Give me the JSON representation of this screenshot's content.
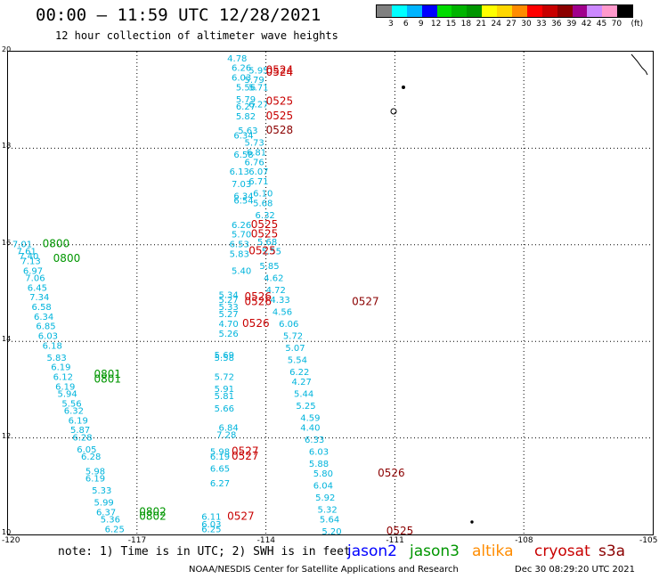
{
  "header": {
    "title": "00:00 – 11:59 UTC 12/28/2021",
    "subtitle": "12 hour collection of altimeter wave heights"
  },
  "legend": {
    "colors": [
      "#808080",
      "#00ffff",
      "#00b4ff",
      "#0000ff",
      "#00dc00",
      "#00b400",
      "#009600",
      "#ffff00",
      "#ffd700",
      "#ff8c00",
      "#ff0000",
      "#c80000",
      "#8b0000",
      "#a0008c",
      "#cc88ff",
      "#ff99cc",
      "#000000"
    ],
    "labels": [
      "3",
      "6",
      "9",
      "12",
      "15",
      "18",
      "21",
      "24",
      "27",
      "30",
      "33",
      "36",
      "39",
      "42",
      "45",
      "70",
      "(ft)"
    ]
  },
  "axes": {
    "x_ticks": [
      "-120",
      "-117",
      "-114",
      "-111",
      "-108",
      "-105"
    ],
    "y_ticks": [
      "20",
      "18",
      "16",
      "14",
      "12",
      "10"
    ]
  },
  "colors": {
    "jason2": "#0000ff",
    "jason3": "#009600",
    "altika": "#ff8c00",
    "cryosat": "#c80000",
    "s3a": "#8b0000",
    "swh": "#00b4dc"
  },
  "footer": {
    "note": "note: 1) Time is in UTC; 2) SWH is in feet",
    "satellites": [
      "jason2",
      "jason3",
      "altika",
      "cryosat",
      "s3a"
    ],
    "credit": "NOAA/NESDIS Center for Satellite Applications and Research",
    "timestamp": "Dec 30 08:29:20 UTC 2021"
  },
  "map_annotations": {
    "swh_values": [
      {
        "lon": -114.9,
        "lat": 19.8,
        "v": "4.78"
      },
      {
        "lon": -114.8,
        "lat": 19.6,
        "v": "6.26"
      },
      {
        "lon": -114.4,
        "lat": 19.55,
        "v": "5.95"
      },
      {
        "lon": -114.8,
        "lat": 19.4,
        "v": "6.03"
      },
      {
        "lon": -114.5,
        "lat": 19.35,
        "v": "5.79"
      },
      {
        "lon": -114.7,
        "lat": 19.2,
        "v": "5.56"
      },
      {
        "lon": -114.4,
        "lat": 19.2,
        "v": "5.71"
      },
      {
        "lon": -114.7,
        "lat": 18.95,
        "v": "5.79"
      },
      {
        "lon": -114.4,
        "lat": 18.85,
        "v": "6.27"
      },
      {
        "lon": -114.7,
        "lat": 18.8,
        "v": "6.27"
      },
      {
        "lon": -114.7,
        "lat": 18.6,
        "v": "5.82"
      },
      {
        "lon": -114.65,
        "lat": 18.3,
        "v": "5.63"
      },
      {
        "lon": -114.75,
        "lat": 18.2,
        "v": "6.34"
      },
      {
        "lon": -114.5,
        "lat": 18.05,
        "v": "5.73"
      },
      {
        "lon": -114.45,
        "lat": 17.85,
        "v": "6.81"
      },
      {
        "lon": -114.75,
        "lat": 17.8,
        "v": "6.58"
      },
      {
        "lon": -114.5,
        "lat": 17.65,
        "v": "6.76"
      },
      {
        "lon": -114.85,
        "lat": 17.45,
        "v": "6.13"
      },
      {
        "lon": -114.4,
        "lat": 17.45,
        "v": "6.07"
      },
      {
        "lon": -114.8,
        "lat": 17.2,
        "v": "7.03"
      },
      {
        "lon": -114.4,
        "lat": 17.25,
        "v": "6.71"
      },
      {
        "lon": -114.75,
        "lat": 16.95,
        "v": "6.34"
      },
      {
        "lon": -114.3,
        "lat": 17.0,
        "v": "6.10"
      },
      {
        "lon": -114.75,
        "lat": 16.85,
        "v": "6.54"
      },
      {
        "lon": -114.3,
        "lat": 16.8,
        "v": "5.68"
      },
      {
        "lon": -114.25,
        "lat": 16.55,
        "v": "6.32"
      },
      {
        "lon": -114.8,
        "lat": 16.35,
        "v": "6.26"
      },
      {
        "lon": -114.8,
        "lat": 16.15,
        "v": "5.70"
      },
      {
        "lon": -114.2,
        "lat": 16.0,
        "v": "5.68"
      },
      {
        "lon": -114.85,
        "lat": 15.95,
        "v": "6.53"
      },
      {
        "lon": -114.1,
        "lat": 15.8,
        "v": "5.55"
      },
      {
        "lon": -114.85,
        "lat": 15.75,
        "v": "5.83"
      },
      {
        "lon": -114.15,
        "lat": 15.5,
        "v": "5.85"
      },
      {
        "lon": -114.8,
        "lat": 15.4,
        "v": "5.40"
      },
      {
        "lon": -114.05,
        "lat": 15.25,
        "v": "4.62"
      },
      {
        "lon": -114.0,
        "lat": 15.0,
        "v": "4.72"
      },
      {
        "lon": -115.1,
        "lat": 14.9,
        "v": "5.34"
      },
      {
        "lon": -115.1,
        "lat": 14.8,
        "v": "5.27"
      },
      {
        "lon": -113.9,
        "lat": 14.8,
        "v": "4.33"
      },
      {
        "lon": -115.1,
        "lat": 14.65,
        "v": "5.33"
      },
      {
        "lon": -113.85,
        "lat": 14.55,
        "v": "4.56"
      },
      {
        "lon": -115.1,
        "lat": 14.5,
        "v": "5.27"
      },
      {
        "lon": -115.1,
        "lat": 14.3,
        "v": "4.70"
      },
      {
        "lon": -113.7,
        "lat": 14.3,
        "v": "6.06"
      },
      {
        "lon": -115.1,
        "lat": 14.1,
        "v": "5.26"
      },
      {
        "lon": -113.6,
        "lat": 14.05,
        "v": "5.72"
      },
      {
        "lon": -113.55,
        "lat": 13.8,
        "v": "5.07"
      },
      {
        "lon": -115.2,
        "lat": 13.65,
        "v": "5.69"
      },
      {
        "lon": -115.2,
        "lat": 13.6,
        "v": "5.58"
      },
      {
        "lon": -113.5,
        "lat": 13.55,
        "v": "5.54"
      },
      {
        "lon": -113.45,
        "lat": 13.3,
        "v": "6.22"
      },
      {
        "lon": -115.2,
        "lat": 13.2,
        "v": "5.72"
      },
      {
        "lon": -113.4,
        "lat": 13.1,
        "v": "4.27"
      },
      {
        "lon": -115.2,
        "lat": 12.95,
        "v": "5.91"
      },
      {
        "lon": -113.35,
        "lat": 12.85,
        "v": "5.44"
      },
      {
        "lon": -115.2,
        "lat": 12.8,
        "v": "5.81"
      },
      {
        "lon": -113.3,
        "lat": 12.6,
        "v": "5.25"
      },
      {
        "lon": -115.2,
        "lat": 12.55,
        "v": "5.66"
      },
      {
        "lon": -113.2,
        "lat": 12.35,
        "v": "4.59"
      },
      {
        "lon": -115.1,
        "lat": 12.15,
        "v": "6.84"
      },
      {
        "lon": -113.2,
        "lat": 12.15,
        "v": "4.40"
      },
      {
        "lon": -115.15,
        "lat": 12.0,
        "v": "7.28"
      },
      {
        "lon": -113.1,
        "lat": 11.9,
        "v": "6.33"
      },
      {
        "lon": -115.3,
        "lat": 11.65,
        "v": "5.98"
      },
      {
        "lon": -113.0,
        "lat": 11.65,
        "v": "6.03"
      },
      {
        "lon": -115.3,
        "lat": 11.55,
        "v": "6.19"
      },
      {
        "lon": -113.0,
        "lat": 11.4,
        "v": "5.88"
      },
      {
        "lon": -115.3,
        "lat": 11.3,
        "v": "6.65"
      },
      {
        "lon": -112.9,
        "lat": 11.2,
        "v": "5.80"
      },
      {
        "lon": -115.3,
        "lat": 11.0,
        "v": "6.27"
      },
      {
        "lon": -112.9,
        "lat": 10.95,
        "v": "6.04"
      },
      {
        "lon": -112.85,
        "lat": 10.7,
        "v": "5.92"
      },
      {
        "lon": -112.8,
        "lat": 10.45,
        "v": "5.32"
      },
      {
        "lon": -115.5,
        "lat": 10.3,
        "v": "6.11"
      },
      {
        "lon": -112.75,
        "lat": 10.25,
        "v": "5.64"
      },
      {
        "lon": -115.5,
        "lat": 10.15,
        "v": "6.03"
      },
      {
        "lon": -115.5,
        "lat": 10.05,
        "v": "6.25"
      },
      {
        "lon": -112.7,
        "lat": 10.0,
        "v": "5.20"
      },
      {
        "lon": -119.9,
        "lat": 15.95,
        "v": "7.01"
      },
      {
        "lon": -119.8,
        "lat": 15.8,
        "v": "7.61"
      },
      {
        "lon": -119.75,
        "lat": 15.7,
        "v": "7.40"
      },
      {
        "lon": -119.7,
        "lat": 15.6,
        "v": "7.13"
      },
      {
        "lon": -119.65,
        "lat": 15.4,
        "v": "6.97"
      },
      {
        "lon": -119.6,
        "lat": 15.25,
        "v": "7.06"
      },
      {
        "lon": -119.55,
        "lat": 15.05,
        "v": "6.45"
      },
      {
        "lon": -119.5,
        "lat": 14.85,
        "v": "7.34"
      },
      {
        "lon": -119.45,
        "lat": 14.65,
        "v": "6.58"
      },
      {
        "lon": -119.4,
        "lat": 14.45,
        "v": "6.34"
      },
      {
        "lon": -119.35,
        "lat": 14.25,
        "v": "6.85"
      },
      {
        "lon": -119.3,
        "lat": 14.05,
        "v": "6.03"
      },
      {
        "lon": -119.2,
        "lat": 13.85,
        "v": "6.18"
      },
      {
        "lon": -119.1,
        "lat": 13.6,
        "v": "5.83"
      },
      {
        "lon": -119.0,
        "lat": 13.4,
        "v": "6.19"
      },
      {
        "lon": -118.95,
        "lat": 13.2,
        "v": "6.12"
      },
      {
        "lon": -118.9,
        "lat": 13.0,
        "v": "6.19"
      },
      {
        "lon": -118.85,
        "lat": 12.85,
        "v": "5.94"
      },
      {
        "lon": -118.75,
        "lat": 12.65,
        "v": "5.56"
      },
      {
        "lon": -118.7,
        "lat": 12.5,
        "v": "6.32"
      },
      {
        "lon": -118.6,
        "lat": 12.3,
        "v": "6.19"
      },
      {
        "lon": -118.55,
        "lat": 12.1,
        "v": "5.87"
      },
      {
        "lon": -118.5,
        "lat": 11.95,
        "v": "6.28"
      },
      {
        "lon": -118.4,
        "lat": 11.7,
        "v": "6.05"
      },
      {
        "lon": -118.3,
        "lat": 11.55,
        "v": "6.28"
      },
      {
        "lon": -118.2,
        "lat": 11.25,
        "v": "5.98"
      },
      {
        "lon": -118.2,
        "lat": 11.1,
        "v": "6.19"
      },
      {
        "lon": -118.05,
        "lat": 10.85,
        "v": "5.33"
      },
      {
        "lon": -118.0,
        "lat": 10.6,
        "v": "5.99"
      },
      {
        "lon": -117.95,
        "lat": 10.4,
        "v": "6.37"
      },
      {
        "lon": -117.85,
        "lat": 10.25,
        "v": "5.36"
      },
      {
        "lon": -117.75,
        "lat": 10.05,
        "v": "6.25"
      }
    ],
    "passes": [
      {
        "lon": -114.0,
        "lat": 19.55,
        "t": "0524",
        "sat": "cryosat"
      },
      {
        "lon": -114.0,
        "lat": 19.5,
        "t": "0524",
        "sat": "cryosat"
      },
      {
        "lon": -114.0,
        "lat": 18.9,
        "t": "0525",
        "sat": "cryosat"
      },
      {
        "lon": -114.0,
        "lat": 18.6,
        "t": "0525",
        "sat": "cryosat"
      },
      {
        "lon": -114.0,
        "lat": 18.3,
        "t": "0528",
        "sat": "s3a"
      },
      {
        "lon": -114.35,
        "lat": 16.35,
        "t": "0525",
        "sat": "cryosat"
      },
      {
        "lon": -114.35,
        "lat": 16.15,
        "t": "0525",
        "sat": "cryosat"
      },
      {
        "lon": -114.4,
        "lat": 15.8,
        "t": "0525",
        "sat": "cryosat"
      },
      {
        "lon": -114.5,
        "lat": 14.85,
        "t": "0526",
        "sat": "cryosat"
      },
      {
        "lon": -114.5,
        "lat": 14.75,
        "t": "0526",
        "sat": "cryosat"
      },
      {
        "lon": -112.0,
        "lat": 14.75,
        "t": "0527",
        "sat": "s3a"
      },
      {
        "lon": -114.55,
        "lat": 14.3,
        "t": "0526",
        "sat": "cryosat"
      },
      {
        "lon": -114.8,
        "lat": 11.65,
        "t": "0527",
        "sat": "cryosat"
      },
      {
        "lon": -114.8,
        "lat": 11.55,
        "t": "0527",
        "sat": "cryosat"
      },
      {
        "lon": -111.4,
        "lat": 11.2,
        "t": "0526",
        "sat": "s3a"
      },
      {
        "lon": -114.9,
        "lat": 10.3,
        "t": "0527",
        "sat": "cryosat"
      },
      {
        "lon": -111.2,
        "lat": 10.0,
        "t": "0525",
        "sat": "s3a"
      },
      {
        "lon": -119.2,
        "lat": 15.95,
        "t": "0800",
        "sat": "jason3"
      },
      {
        "lon": -118.95,
        "lat": 15.65,
        "t": "0800",
        "sat": "jason3"
      },
      {
        "lon": -118.0,
        "lat": 13.25,
        "t": "0801",
        "sat": "jason3"
      },
      {
        "lon": -118.0,
        "lat": 13.15,
        "t": "0801",
        "sat": "jason3"
      },
      {
        "lon": -116.95,
        "lat": 10.4,
        "t": "0802",
        "sat": "jason3"
      },
      {
        "lon": -116.95,
        "lat": 10.3,
        "t": "0802",
        "sat": "jason3"
      }
    ]
  }
}
